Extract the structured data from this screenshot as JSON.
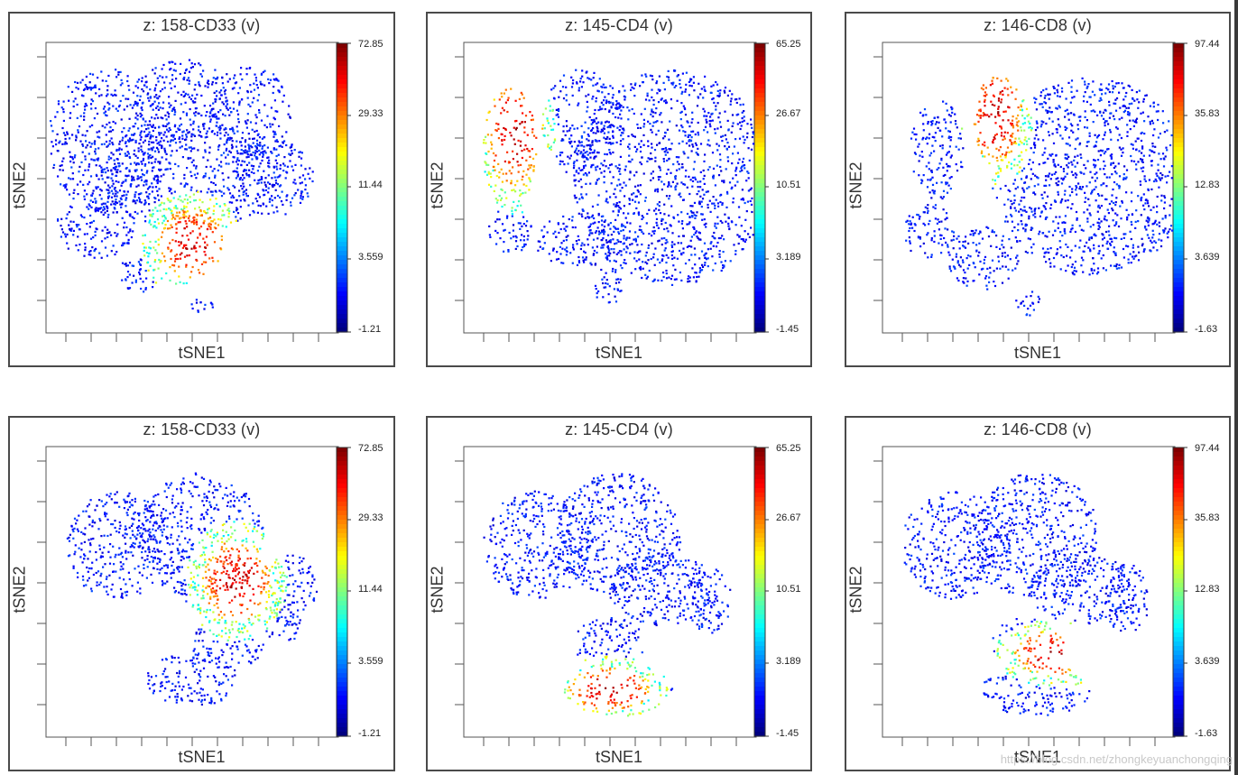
{
  "chart_data": [
    {
      "type": "scatter",
      "title": "z: 158-CD33 (v)",
      "xlabel": "tSNE1",
      "ylabel": "tSNE2",
      "colorbar": {
        "max": "72.85",
        "ticks": [
          "29.33",
          "11.44",
          "3.559"
        ],
        "min": "-1.21",
        "scale": "arcsinh",
        "colormap": "jet"
      },
      "high_expression_region": "center-bottom"
    },
    {
      "type": "scatter",
      "title": "z: 145-CD4 (v)",
      "xlabel": "tSNE1",
      "ylabel": "tSNE2",
      "colorbar": {
        "max": "65.25",
        "ticks": [
          "26.67",
          "10.51",
          "3.189"
        ],
        "min": "-1.45",
        "scale": "arcsinh",
        "colormap": "jet"
      },
      "high_expression_region": "left"
    },
    {
      "type": "scatter",
      "title": "z: 146-CD8 (v)",
      "xlabel": "tSNE1",
      "ylabel": "tSNE2",
      "colorbar": {
        "max": "97.44",
        "ticks": [
          "35.83",
          "12.83",
          "3.639"
        ],
        "min": "-1.63",
        "scale": "arcsinh",
        "colormap": "jet"
      },
      "high_expression_region": "upper-left-center"
    },
    {
      "type": "scatter",
      "title": "z: 158-CD33 (v)",
      "xlabel": "tSNE1",
      "ylabel": "tSNE2",
      "colorbar": {
        "max": "72.85",
        "ticks": [
          "29.33",
          "11.44",
          "3.559"
        ],
        "min": "-1.21",
        "scale": "arcsinh",
        "colormap": "jet"
      },
      "high_expression_region": "center-right"
    },
    {
      "type": "scatter",
      "title": "z: 145-CD4 (v)",
      "xlabel": "tSNE1",
      "ylabel": "tSNE2",
      "colorbar": {
        "max": "65.25",
        "ticks": [
          "26.67",
          "10.51",
          "3.189"
        ],
        "min": "-1.45",
        "scale": "arcsinh",
        "colormap": "jet"
      },
      "high_expression_region": "bottom"
    },
    {
      "type": "scatter",
      "title": "z: 146-CD8 (v)",
      "xlabel": "tSNE1",
      "ylabel": "tSNE2",
      "colorbar": {
        "max": "97.44",
        "ticks": [
          "35.83",
          "12.83",
          "3.639"
        ],
        "min": "-1.63",
        "scale": "arcsinh",
        "colormap": "jet"
      },
      "high_expression_region": "lower-center"
    }
  ],
  "watermark": "https://blog.csdn.net/zhongkeyuanchongqing"
}
